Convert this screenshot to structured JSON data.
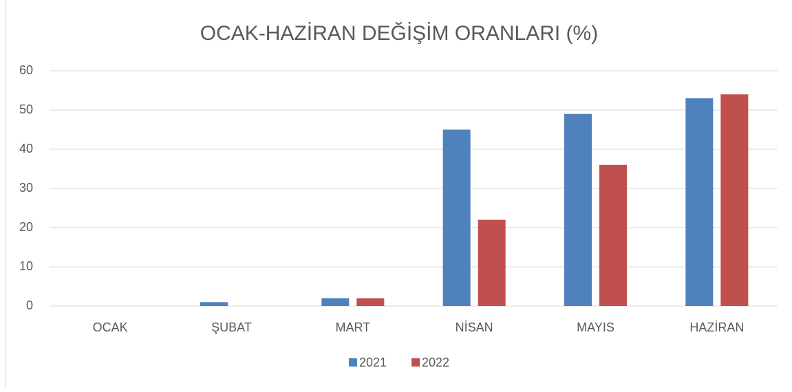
{
  "chart_data": {
    "type": "bar",
    "title": "OCAK-HAZİRAN DEĞİŞİM ORANLARI (%)",
    "categories": [
      "OCAK",
      "ŞUBAT",
      "MART",
      "NİSAN",
      "MAYIS",
      "HAZİRAN"
    ],
    "series": [
      {
        "name": "2021",
        "color": "#4f81bd",
        "values": [
          0,
          1,
          2,
          45,
          49,
          53
        ]
      },
      {
        "name": "2022",
        "color": "#c0504d",
        "values": [
          0,
          0,
          2,
          22,
          36,
          54
        ]
      }
    ],
    "ylim": [
      0,
      60
    ],
    "yticks": [
      0,
      10,
      20,
      30,
      40,
      50,
      60
    ],
    "grid": true,
    "legend": "bottom"
  }
}
